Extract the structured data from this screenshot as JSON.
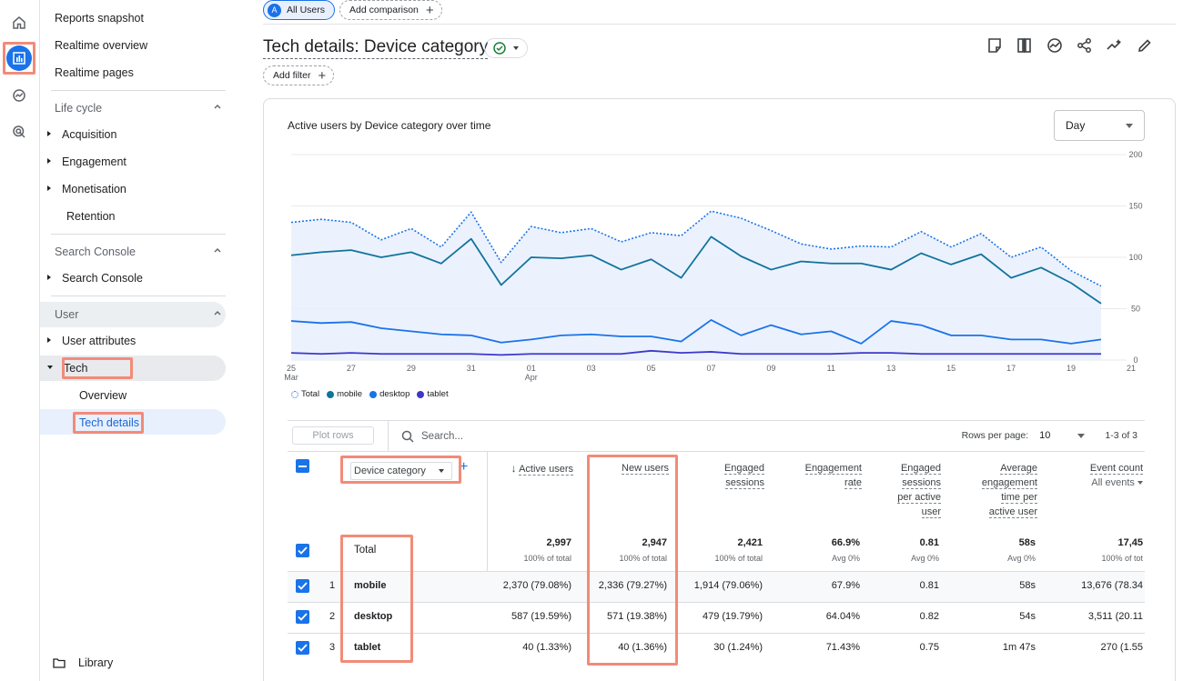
{
  "rail": {
    "icons": [
      "home-icon",
      "reports-icon",
      "explore-icon",
      "advertising-icon"
    ]
  },
  "sidebar": {
    "top_items": [
      "Reports snapshot",
      "Realtime overview",
      "Realtime pages"
    ],
    "lifecycle": {
      "title": "Life cycle",
      "items": [
        "Acquisition",
        "Engagement",
        "Monetisation",
        "Retention"
      ]
    },
    "search_console": {
      "title": "Search Console",
      "items": [
        "Search Console"
      ]
    },
    "user": {
      "title": "User",
      "items": [
        "User attributes",
        "Tech"
      ],
      "tech_children": [
        "Overview",
        "Tech details"
      ]
    },
    "library": "Library"
  },
  "header": {
    "segment_badge": "A",
    "segment_label": "All Users",
    "add_comparison": "Add comparison",
    "title": "Tech details: Device category",
    "add_filter": "Add filter",
    "toolbar_icons": [
      "edit-report-icon",
      "compare-icon",
      "insights-icon",
      "share-icon",
      "trend-icon",
      "pencil-icon"
    ]
  },
  "chart": {
    "title": "Active users by Device category over time",
    "granularity": "Day",
    "legend": [
      "Total",
      "mobile",
      "desktop",
      "tablet"
    ]
  },
  "chart_data": {
    "type": "line",
    "title": "Active users by Device category over time",
    "x": [
      "25 Mar",
      "26",
      "27",
      "28",
      "29",
      "30",
      "31",
      "01 Apr",
      "02",
      "03",
      "04",
      "05",
      "06",
      "07",
      "08",
      "09",
      "10",
      "11",
      "12",
      "13",
      "14",
      "15",
      "16",
      "17",
      "18",
      "19",
      "20",
      "21"
    ],
    "x_tick_labels": [
      "25\nMar",
      "27",
      "29",
      "31",
      "01\nApr",
      "03",
      "05",
      "07",
      "09",
      "11",
      "13",
      "15",
      "17",
      "19",
      "21"
    ],
    "ylim": [
      0,
      200
    ],
    "y_ticks": [
      0,
      50,
      100,
      150,
      200
    ],
    "series": [
      {
        "name": "Total",
        "style": "dotted",
        "color": "#1a73e8",
        "values": [
          134,
          137,
          134,
          117,
          128,
          110,
          144,
          95,
          130,
          124,
          128,
          115,
          124,
          121,
          145,
          138,
          126,
          113,
          108,
          111,
          110,
          125,
          110,
          123,
          100,
          110,
          87,
          72
        ]
      },
      {
        "name": "mobile",
        "style": "solid",
        "color": "#12739c",
        "values": [
          102,
          105,
          107,
          100,
          105,
          94,
          118,
          73,
          100,
          99,
          102,
          88,
          98,
          80,
          120,
          101,
          88,
          96,
          94,
          94,
          88,
          104,
          93,
          103,
          80,
          90,
          75,
          55
        ]
      },
      {
        "name": "desktop",
        "style": "solid",
        "color": "#1a73e8",
        "values": [
          38,
          36,
          37,
          31,
          28,
          25,
          24,
          17,
          20,
          24,
          25,
          23,
          23,
          18,
          39,
          24,
          34,
          25,
          28,
          16,
          38,
          34,
          24,
          24,
          20,
          20,
          16,
          20
        ]
      },
      {
        "name": "tablet",
        "style": "solid",
        "color": "#3f37c9",
        "values": [
          7,
          6,
          7,
          6,
          6,
          6,
          6,
          5,
          6,
          6,
          6,
          6,
          9,
          7,
          8,
          6,
          6,
          6,
          6,
          7,
          7,
          6,
          6,
          6,
          6,
          6,
          6,
          6
        ]
      }
    ],
    "grid": true,
    "legend_position": "bottom-left"
  },
  "table": {
    "plot_rows": "Plot rows",
    "search_placeholder": "Search...",
    "rows_per_page_label": "Rows per page:",
    "rows_per_page": "10",
    "pagination": "1-3 of 3",
    "dimension_label": "Device category",
    "columns": [
      {
        "label": "Active users",
        "sort": "desc"
      },
      {
        "label": "New users"
      },
      {
        "label": "Engaged\nsessions"
      },
      {
        "label": "Engagement\nrate"
      },
      {
        "label": "Engaged\nsessions\nper active\nuser"
      },
      {
        "label": "Average\nengagement\ntime per\nactive user"
      },
      {
        "label": "Event count",
        "sub": "All events"
      }
    ],
    "total": {
      "label": "Total",
      "values": [
        "2,997",
        "2,947",
        "2,421",
        "66.9%",
        "0.81",
        "58s",
        "17,45"
      ],
      "subs": [
        "100% of total",
        "100% of total",
        "100% of total",
        "Avg 0%",
        "Avg 0%",
        "Avg 0%",
        "100% of tot"
      ]
    },
    "rows": [
      {
        "index": "1",
        "label": "mobile",
        "values": [
          "2,370 (79.08%)",
          "2,336 (79.27%)",
          "1,914 (79.06%)",
          "67.9%",
          "0.81",
          "58s",
          "13,676 (78.34"
        ]
      },
      {
        "index": "2",
        "label": "desktop",
        "values": [
          "587 (19.59%)",
          "571 (19.38%)",
          "479 (19.79%)",
          "64.04%",
          "0.82",
          "54s",
          "3,511 (20.11"
        ]
      },
      {
        "index": "3",
        "label": "tablet",
        "values": [
          "40 (1.33%)",
          "40 (1.36%)",
          "30 (1.24%)",
          "71.43%",
          "0.75",
          "1m 47s",
          "270 (1.55"
        ]
      }
    ]
  }
}
